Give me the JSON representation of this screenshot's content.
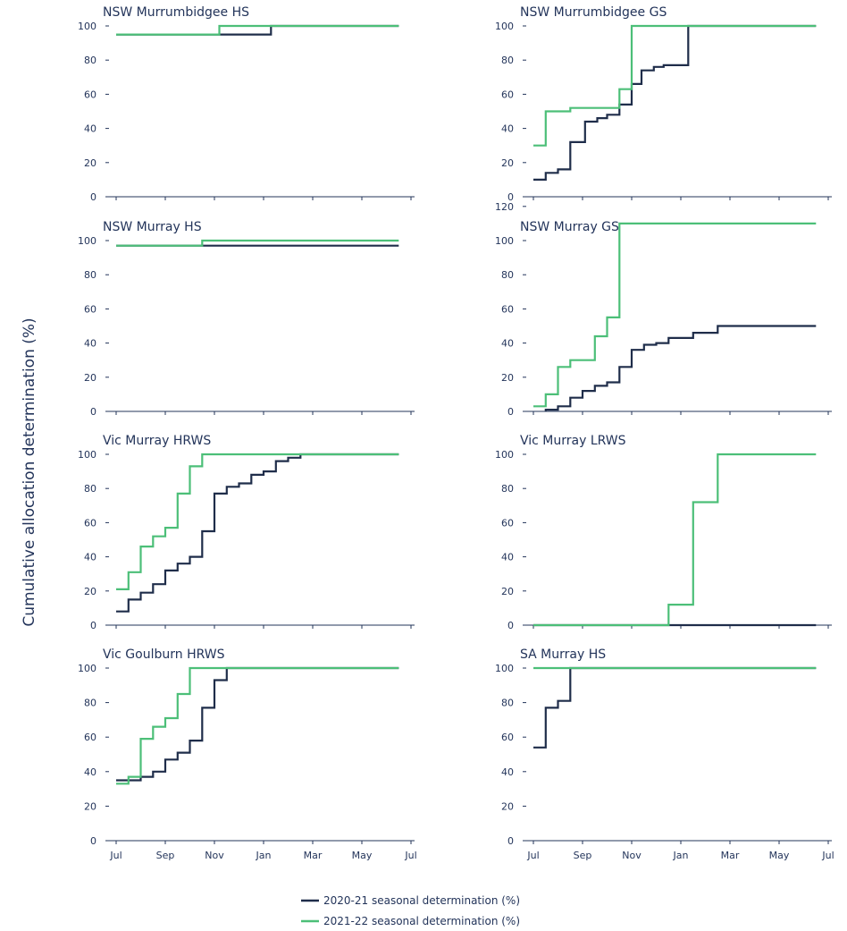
{
  "figure": {
    "ylabel": "Cumulative allocation determination (%)"
  },
  "legend": {
    "items": [
      {
        "label": "2020-21 seasonal determination (%)",
        "color": "#1f2d4a"
      },
      {
        "label": "2021-22 seasonal determination (%)",
        "color": "#4cbf78"
      }
    ]
  },
  "chart_data": [
    {
      "type": "line",
      "title": "NSW Murrumbidgee HS",
      "xlabel": "",
      "ylabel": "",
      "ylim": [
        0,
        100
      ],
      "yticks": [
        0,
        20,
        40,
        60,
        80,
        100
      ],
      "xlim": [
        0,
        12
      ],
      "xticks": [],
      "step": true,
      "series": [
        {
          "points": [
            [
              0,
              95
            ],
            [
              6.3,
              95
            ],
            [
              6.3,
              100
            ],
            [
              11.5,
              100
            ]
          ],
          "color": "#1f2d4a"
        },
        {
          "points": [
            [
              0,
              95
            ],
            [
              4.2,
              95
            ],
            [
              4.2,
              100
            ],
            [
              11.5,
              100
            ]
          ],
          "color": "#4cbf78"
        }
      ]
    },
    {
      "type": "line",
      "title": "NSW Murrumbidgee GS",
      "xlabel": "",
      "ylabel": "",
      "ylim": [
        0,
        100
      ],
      "yticks": [
        0,
        20,
        40,
        60,
        80,
        100
      ],
      "xlim": [
        0,
        12
      ],
      "xticks": [],
      "step": true,
      "series": [
        {
          "points": [
            [
              0,
              10
            ],
            [
              0.5,
              10
            ],
            [
              0.5,
              14
            ],
            [
              1,
              14
            ],
            [
              1,
              16
            ],
            [
              1.5,
              16
            ],
            [
              1.5,
              32
            ],
            [
              2.1,
              32
            ],
            [
              2.1,
              44
            ],
            [
              2.6,
              44
            ],
            [
              2.6,
              46
            ],
            [
              3,
              46
            ],
            [
              3,
              48
            ],
            [
              3.5,
              48
            ],
            [
              3.5,
              54
            ],
            [
              4,
              54
            ],
            [
              4,
              66
            ],
            [
              4.4,
              66
            ],
            [
              4.4,
              74
            ],
            [
              4.9,
              74
            ],
            [
              4.9,
              76
            ],
            [
              5.3,
              76
            ],
            [
              5.3,
              77
            ],
            [
              6.3,
              77
            ],
            [
              6.3,
              100
            ],
            [
              11.5,
              100
            ]
          ],
          "color": "#1f2d4a"
        },
        {
          "points": [
            [
              0,
              30
            ],
            [
              0.5,
              30
            ],
            [
              0.5,
              50
            ],
            [
              1.5,
              50
            ],
            [
              1.5,
              52
            ],
            [
              3.5,
              52
            ],
            [
              3.5,
              63
            ],
            [
              4,
              63
            ],
            [
              4,
              100
            ],
            [
              11.5,
              100
            ]
          ],
          "color": "#4cbf78"
        }
      ]
    },
    {
      "type": "line",
      "title": "NSW Murray HS",
      "xlabel": "",
      "ylabel": "",
      "ylim": [
        0,
        100
      ],
      "yticks": [
        0,
        20,
        40,
        60,
        80,
        100
      ],
      "xlim": [
        0,
        12
      ],
      "xticks": [],
      "step": true,
      "series": [
        {
          "points": [
            [
              0,
              97
            ],
            [
              11.5,
              97
            ]
          ],
          "color": "#1f2d4a"
        },
        {
          "points": [
            [
              0,
              97
            ],
            [
              3.5,
              97
            ],
            [
              3.5,
              100
            ],
            [
              11.5,
              100
            ]
          ],
          "color": "#4cbf78"
        }
      ]
    },
    {
      "type": "line",
      "title": "NSW Murray GS",
      "xlabel": "",
      "ylabel": "",
      "ylim": [
        0,
        120
      ],
      "yticks": [
        0,
        20,
        40,
        60,
        80,
        100,
        120
      ],
      "xlim": [
        0,
        12
      ],
      "xticks": [],
      "step": true,
      "series": [
        {
          "points": [
            [
              0.5,
              0
            ],
            [
              0.5,
              1
            ],
            [
              1,
              1
            ],
            [
              1,
              3
            ],
            [
              1.5,
              3
            ],
            [
              1.5,
              8
            ],
            [
              2,
              8
            ],
            [
              2,
              12
            ],
            [
              2.5,
              12
            ],
            [
              2.5,
              15
            ],
            [
              3,
              15
            ],
            [
              3,
              17
            ],
            [
              3.5,
              17
            ],
            [
              3.5,
              26
            ],
            [
              4,
              26
            ],
            [
              4,
              36
            ],
            [
              4.5,
              36
            ],
            [
              4.5,
              39
            ],
            [
              5,
              39
            ],
            [
              5,
              40
            ],
            [
              5.5,
              40
            ],
            [
              5.5,
              43
            ],
            [
              6.5,
              43
            ],
            [
              6.5,
              46
            ],
            [
              7.5,
              46
            ],
            [
              7.5,
              50
            ],
            [
              11.5,
              50
            ]
          ],
          "color": "#1f2d4a"
        },
        {
          "points": [
            [
              0,
              3
            ],
            [
              0.5,
              3
            ],
            [
              0.5,
              10
            ],
            [
              1,
              10
            ],
            [
              1,
              26
            ],
            [
              1.5,
              26
            ],
            [
              1.5,
              30
            ],
            [
              2.5,
              30
            ],
            [
              2.5,
              44
            ],
            [
              3,
              44
            ],
            [
              3,
              55
            ],
            [
              3.5,
              55
            ],
            [
              3.5,
              110
            ],
            [
              11.5,
              110
            ]
          ],
          "color": "#4cbf78"
        }
      ]
    },
    {
      "type": "line",
      "title": "Vic Murray HRWS",
      "xlabel": "",
      "ylabel": "",
      "ylim": [
        0,
        100
      ],
      "yticks": [
        0,
        20,
        40,
        60,
        80,
        100
      ],
      "xlim": [
        0,
        12
      ],
      "xticks": [],
      "step": true,
      "series": [
        {
          "points": [
            [
              0,
              8
            ],
            [
              0.5,
              8
            ],
            [
              0.5,
              15
            ],
            [
              1,
              15
            ],
            [
              1,
              19
            ],
            [
              1.5,
              19
            ],
            [
              1.5,
              24
            ],
            [
              2,
              24
            ],
            [
              2,
              32
            ],
            [
              2.5,
              32
            ],
            [
              2.5,
              36
            ],
            [
              3,
              36
            ],
            [
              3,
              40
            ],
            [
              3.5,
              40
            ],
            [
              3.5,
              55
            ],
            [
              4,
              55
            ],
            [
              4,
              77
            ],
            [
              4.5,
              77
            ],
            [
              4.5,
              81
            ],
            [
              5,
              81
            ],
            [
              5,
              83
            ],
            [
              5.5,
              83
            ],
            [
              5.5,
              88
            ],
            [
              6,
              88
            ],
            [
              6,
              90
            ],
            [
              6.5,
              90
            ],
            [
              6.5,
              96
            ],
            [
              7,
              96
            ],
            [
              7,
              98
            ],
            [
              7.5,
              98
            ],
            [
              7.5,
              100
            ],
            [
              11.5,
              100
            ]
          ],
          "color": "#1f2d4a"
        },
        {
          "points": [
            [
              0,
              21
            ],
            [
              0.5,
              21
            ],
            [
              0.5,
              31
            ],
            [
              1,
              31
            ],
            [
              1,
              46
            ],
            [
              1.5,
              46
            ],
            [
              1.5,
              52
            ],
            [
              2,
              52
            ],
            [
              2,
              57
            ],
            [
              2.5,
              57
            ],
            [
              2.5,
              77
            ],
            [
              3,
              77
            ],
            [
              3,
              93
            ],
            [
              3.5,
              93
            ],
            [
              3.5,
              100
            ],
            [
              11.5,
              100
            ]
          ],
          "color": "#4cbf78"
        }
      ]
    },
    {
      "type": "line",
      "title": "Vic Murray LRWS",
      "xlabel": "",
      "ylabel": "",
      "ylim": [
        0,
        100
      ],
      "yticks": [
        0,
        20,
        40,
        60,
        80,
        100
      ],
      "xlim": [
        0,
        12
      ],
      "xticks": [],
      "step": true,
      "series": [
        {
          "points": [
            [
              0,
              0
            ],
            [
              11.5,
              0
            ]
          ],
          "color": "#1f2d4a"
        },
        {
          "points": [
            [
              0,
              0
            ],
            [
              5.5,
              0
            ],
            [
              5.5,
              12
            ],
            [
              6.5,
              12
            ],
            [
              6.5,
              72
            ],
            [
              7.5,
              72
            ],
            [
              7.5,
              100
            ],
            [
              11.5,
              100
            ]
          ],
          "color": "#4cbf78"
        }
      ]
    },
    {
      "type": "line",
      "title": "Vic Goulburn HRWS",
      "xlabel": "",
      "ylabel": "",
      "ylim": [
        0,
        100
      ],
      "yticks": [
        0,
        20,
        40,
        60,
        80,
        100
      ],
      "xlim": [
        0,
        12
      ],
      "xticks": [
        "Jul",
        "Sep",
        "Nov",
        "Jan",
        "Mar",
        "May",
        "Jul"
      ],
      "step": true,
      "series": [
        {
          "points": [
            [
              0,
              35
            ],
            [
              1,
              35
            ],
            [
              1,
              37
            ],
            [
              1.5,
              37
            ],
            [
              1.5,
              40
            ],
            [
              2,
              40
            ],
            [
              2,
              47
            ],
            [
              2.5,
              47
            ],
            [
              2.5,
              51
            ],
            [
              3,
              51
            ],
            [
              3,
              58
            ],
            [
              3.5,
              58
            ],
            [
              3.5,
              77
            ],
            [
              4,
              77
            ],
            [
              4,
              93
            ],
            [
              4.5,
              93
            ],
            [
              4.5,
              100
            ],
            [
              11.5,
              100
            ]
          ],
          "color": "#1f2d4a"
        },
        {
          "points": [
            [
              0,
              33
            ],
            [
              0.5,
              33
            ],
            [
              0.5,
              37
            ],
            [
              1,
              37
            ],
            [
              1,
              59
            ],
            [
              1.5,
              59
            ],
            [
              1.5,
              66
            ],
            [
              2,
              66
            ],
            [
              2,
              71
            ],
            [
              2.5,
              71
            ],
            [
              2.5,
              85
            ],
            [
              3,
              85
            ],
            [
              3,
              100
            ],
            [
              11.5,
              100
            ]
          ],
          "color": "#4cbf78"
        }
      ]
    },
    {
      "type": "line",
      "title": "SA Murray HS",
      "xlabel": "",
      "ylabel": "",
      "ylim": [
        0,
        100
      ],
      "yticks": [
        0,
        20,
        40,
        60,
        80,
        100
      ],
      "xlim": [
        0,
        12
      ],
      "xticks": [
        "Jul",
        "Sep",
        "Nov",
        "Jan",
        "Mar",
        "May",
        "Jul"
      ],
      "step": true,
      "series": [
        {
          "points": [
            [
              0,
              54
            ],
            [
              0.5,
              54
            ],
            [
              0.5,
              77
            ],
            [
              1,
              77
            ],
            [
              1,
              81
            ],
            [
              1.5,
              81
            ],
            [
              1.5,
              100
            ],
            [
              11.5,
              100
            ]
          ],
          "color": "#1f2d4a"
        },
        {
          "points": [
            [
              0,
              100
            ],
            [
              11.5,
              100
            ]
          ],
          "color": "#4cbf78"
        }
      ]
    }
  ]
}
